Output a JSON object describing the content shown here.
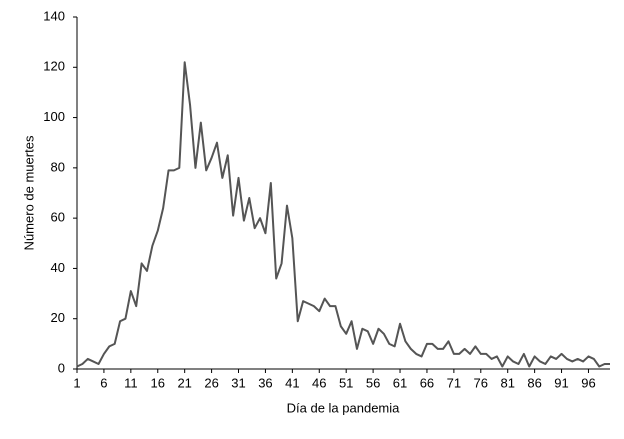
{
  "chart_data": {
    "type": "line",
    "xlabel": "Día de la pandemia",
    "ylabel": "Número de muertes",
    "x": [
      1,
      2,
      3,
      4,
      5,
      6,
      7,
      8,
      9,
      10,
      11,
      12,
      13,
      14,
      15,
      16,
      17,
      18,
      19,
      20,
      21,
      22,
      23,
      24,
      25,
      26,
      27,
      28,
      29,
      30,
      31,
      32,
      33,
      34,
      35,
      36,
      37,
      38,
      39,
      40,
      41,
      42,
      43,
      44,
      45,
      46,
      47,
      48,
      49,
      50,
      51,
      52,
      53,
      54,
      55,
      56,
      57,
      58,
      59,
      60,
      61,
      62,
      63,
      64,
      65,
      66,
      67,
      68,
      69,
      70,
      71,
      72,
      73,
      74,
      75,
      76,
      77,
      78,
      79,
      80,
      81,
      82,
      83,
      84,
      85,
      86,
      87,
      88,
      89,
      90,
      91,
      92,
      93,
      94,
      95,
      96,
      97,
      98,
      99,
      100
    ],
    "series": [
      {
        "color": "#555555",
        "values": [
          1,
          2,
          4,
          3,
          2,
          6,
          9,
          10,
          19,
          20,
          31,
          25,
          42,
          39,
          49,
          55,
          64,
          79,
          79,
          80,
          122,
          105,
          80,
          98,
          79,
          84,
          90,
          76,
          85,
          61,
          76,
          59,
          68,
          56,
          60,
          54,
          74,
          36,
          42,
          65,
          52,
          19,
          27,
          26,
          25,
          23,
          28,
          25,
          25,
          17,
          14,
          19,
          8,
          16,
          15,
          10,
          16,
          14,
          10,
          9,
          18,
          11,
          8,
          6,
          5,
          10,
          10,
          8,
          8,
          11,
          6,
          6,
          8,
          6,
          9,
          6,
          6,
          4,
          5,
          1,
          5,
          3,
          2,
          6,
          1,
          5,
          3,
          2,
          5,
          4,
          6,
          4,
          3,
          4,
          3,
          5,
          4,
          1,
          2,
          2
        ]
      }
    ],
    "xlim": [
      1,
      100
    ],
    "xticks": [
      1,
      6,
      11,
      16,
      21,
      26,
      31,
      36,
      41,
      46,
      51,
      56,
      61,
      66,
      71,
      76,
      81,
      86,
      91,
      96
    ],
    "ylim": [
      0,
      140
    ],
    "yticks": [
      0,
      20,
      40,
      60,
      80,
      100,
      120,
      140
    ]
  }
}
